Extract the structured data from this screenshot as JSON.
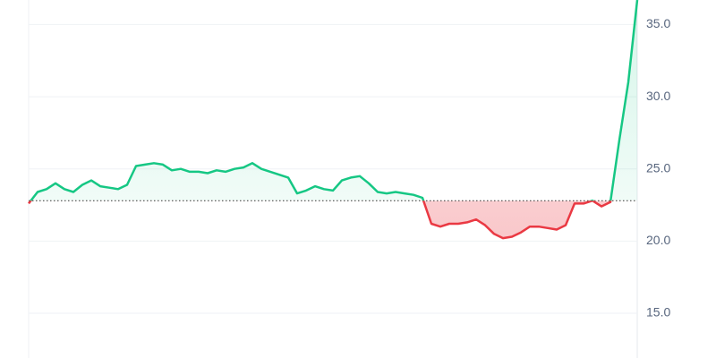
{
  "chart_data": {
    "type": "line",
    "values": [
      22.6,
      23.4,
      23.6,
      24.0,
      23.6,
      23.4,
      23.9,
      24.2,
      23.8,
      23.7,
      23.6,
      23.9,
      25.2,
      25.3,
      25.4,
      25.3,
      24.9,
      25.0,
      24.8,
      24.8,
      24.7,
      24.9,
      24.8,
      25.0,
      25.1,
      25.4,
      25.0,
      24.8,
      24.6,
      24.4,
      23.3,
      23.5,
      23.8,
      23.6,
      23.5,
      24.2,
      24.4,
      24.5,
      24.0,
      23.4,
      23.3,
      23.4,
      23.3,
      23.2,
      23.0,
      21.2,
      21.0,
      21.2,
      21.2,
      21.3,
      21.5,
      21.1,
      20.5,
      20.2,
      20.3,
      20.6,
      21.0,
      21.0,
      20.9,
      20.8,
      21.1,
      22.6,
      22.6,
      22.8,
      22.4,
      22.7,
      27.0,
      31.0,
      36.7
    ],
    "baseline": 22.8,
    "up_color": "#16c784",
    "down_color": "#ea3943",
    "ylim": [
      11.9,
      36.7
    ],
    "yticks": [
      {
        "value": 15,
        "label": "15.0"
      },
      {
        "value": 20,
        "label": "20.0"
      },
      {
        "value": 25,
        "label": "25.0"
      },
      {
        "value": 30,
        "label": "30.0"
      },
      {
        "value": 35,
        "label": "35.0"
      }
    ],
    "grid": true
  }
}
